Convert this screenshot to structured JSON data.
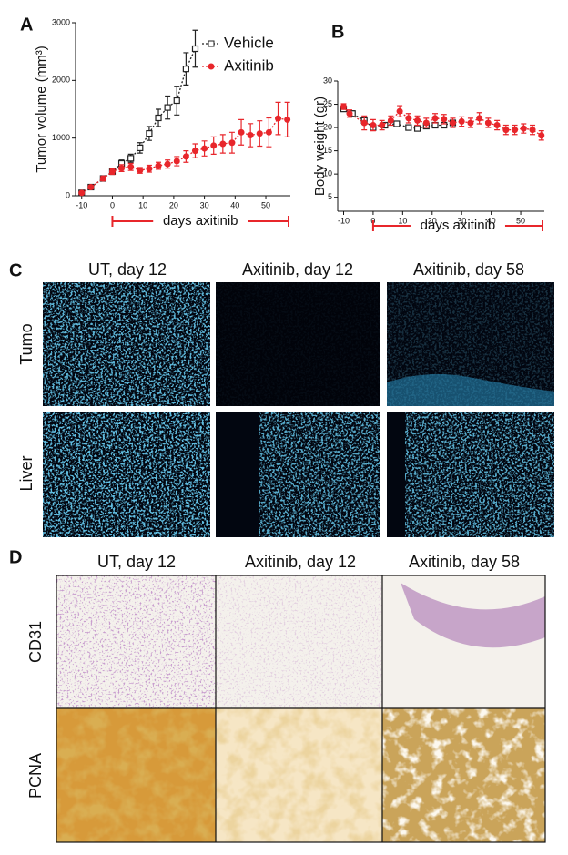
{
  "chart_data": [
    {
      "type": "line",
      "panel_label": "A",
      "ylabel": "Tumor volume (mm³)",
      "annotation": "days axitinib",
      "xlim": [
        -12,
        58
      ],
      "xticks": [
        -10,
        0,
        10,
        20,
        30,
        40,
        50
      ],
      "ylim": [
        0,
        3000
      ],
      "yticks": [
        0,
        1000,
        2000,
        3000
      ],
      "legend": "upper right",
      "series": [
        {
          "name": "Vehicle",
          "color": "#222222",
          "marker": "open-square",
          "x": [
            -10,
            -7,
            -3,
            0,
            3,
            6,
            9,
            12,
            15,
            18,
            21,
            24,
            27
          ],
          "values": [
            50,
            150,
            300,
            420,
            560,
            650,
            830,
            1080,
            1350,
            1530,
            1650,
            2200,
            2550
          ],
          "errors": [
            20,
            30,
            40,
            50,
            60,
            70,
            90,
            120,
            150,
            200,
            250,
            280,
            320
          ]
        },
        {
          "name": "Axitinib",
          "color": "#e8262b",
          "marker": "filled-circle",
          "x": [
            -10,
            -7,
            -3,
            0,
            3,
            6,
            9,
            12,
            15,
            18,
            21,
            24,
            27,
            30,
            33,
            36,
            39,
            42,
            45,
            48,
            51,
            54,
            57
          ],
          "values": [
            50,
            150,
            300,
            420,
            480,
            500,
            440,
            470,
            520,
            550,
            600,
            680,
            780,
            820,
            870,
            900,
            920,
            1100,
            1050,
            1080,
            1100,
            1340,
            1320
          ],
          "errors": [
            20,
            30,
            40,
            50,
            60,
            60,
            50,
            60,
            60,
            70,
            80,
            100,
            120,
            130,
            150,
            160,
            180,
            220,
            200,
            220,
            250,
            280,
            300
          ]
        }
      ]
    },
    {
      "type": "line",
      "panel_label": "B",
      "ylabel": "Body weight (gr)",
      "annotation": "days axitinib",
      "xlim": [
        -12,
        58
      ],
      "xticks": [
        -10,
        0,
        10,
        20,
        30,
        40,
        50
      ],
      "ylim": [
        2,
        30
      ],
      "yticks": [
        5,
        10,
        15,
        20,
        25,
        30
      ],
      "series": [
        {
          "name": "Vehicle",
          "color": "#222222",
          "marker": "open-square",
          "x": [
            -10,
            -7,
            -3,
            0,
            4,
            8,
            12,
            15,
            18,
            21,
            24,
            27
          ],
          "values": [
            24,
            23,
            21.5,
            20,
            20.5,
            20.8,
            20,
            19.8,
            20.3,
            20.5,
            20.5,
            21
          ],
          "errors": [
            0.5,
            0.6,
            0.8,
            0.6,
            0.5,
            0.5,
            0.5,
            0.5,
            0.5,
            0.5,
            0.5,
            0.5
          ]
        },
        {
          "name": "Axitinib",
          "color": "#e8262b",
          "marker": "filled-circle",
          "x": [
            -10,
            -8,
            -3,
            0,
            3,
            6,
            9,
            12,
            15,
            18,
            21,
            24,
            27,
            30,
            33,
            36,
            39,
            42,
            45,
            48,
            51,
            54,
            57
          ],
          "values": [
            24.5,
            23,
            21,
            20.5,
            20.5,
            21.5,
            23.5,
            22,
            21.5,
            21,
            22,
            21.8,
            21,
            21.3,
            21,
            22,
            21,
            20.5,
            19.5,
            19.5,
            19.8,
            19.5,
            18.3
          ],
          "errors": [
            0.6,
            0.8,
            1.5,
            1.2,
            1,
            1,
            1.2,
            1,
            1,
            1,
            1,
            1,
            1,
            1,
            1,
            1.2,
            1,
            1,
            1,
            1,
            1,
            1,
            1
          ]
        }
      ]
    }
  ],
  "panel_c": {
    "label": "C",
    "columns": [
      "UT, day 12",
      "Axitinib, day 12",
      "Axitinib, day 58"
    ],
    "rows": [
      "Tumo",
      "Liver"
    ]
  },
  "panel_d": {
    "label": "D",
    "columns": [
      "UT, day 12",
      "Axitinib, day 12",
      "Axitinib, day 58"
    ],
    "rows": [
      "CD31",
      "PCNA"
    ]
  }
}
